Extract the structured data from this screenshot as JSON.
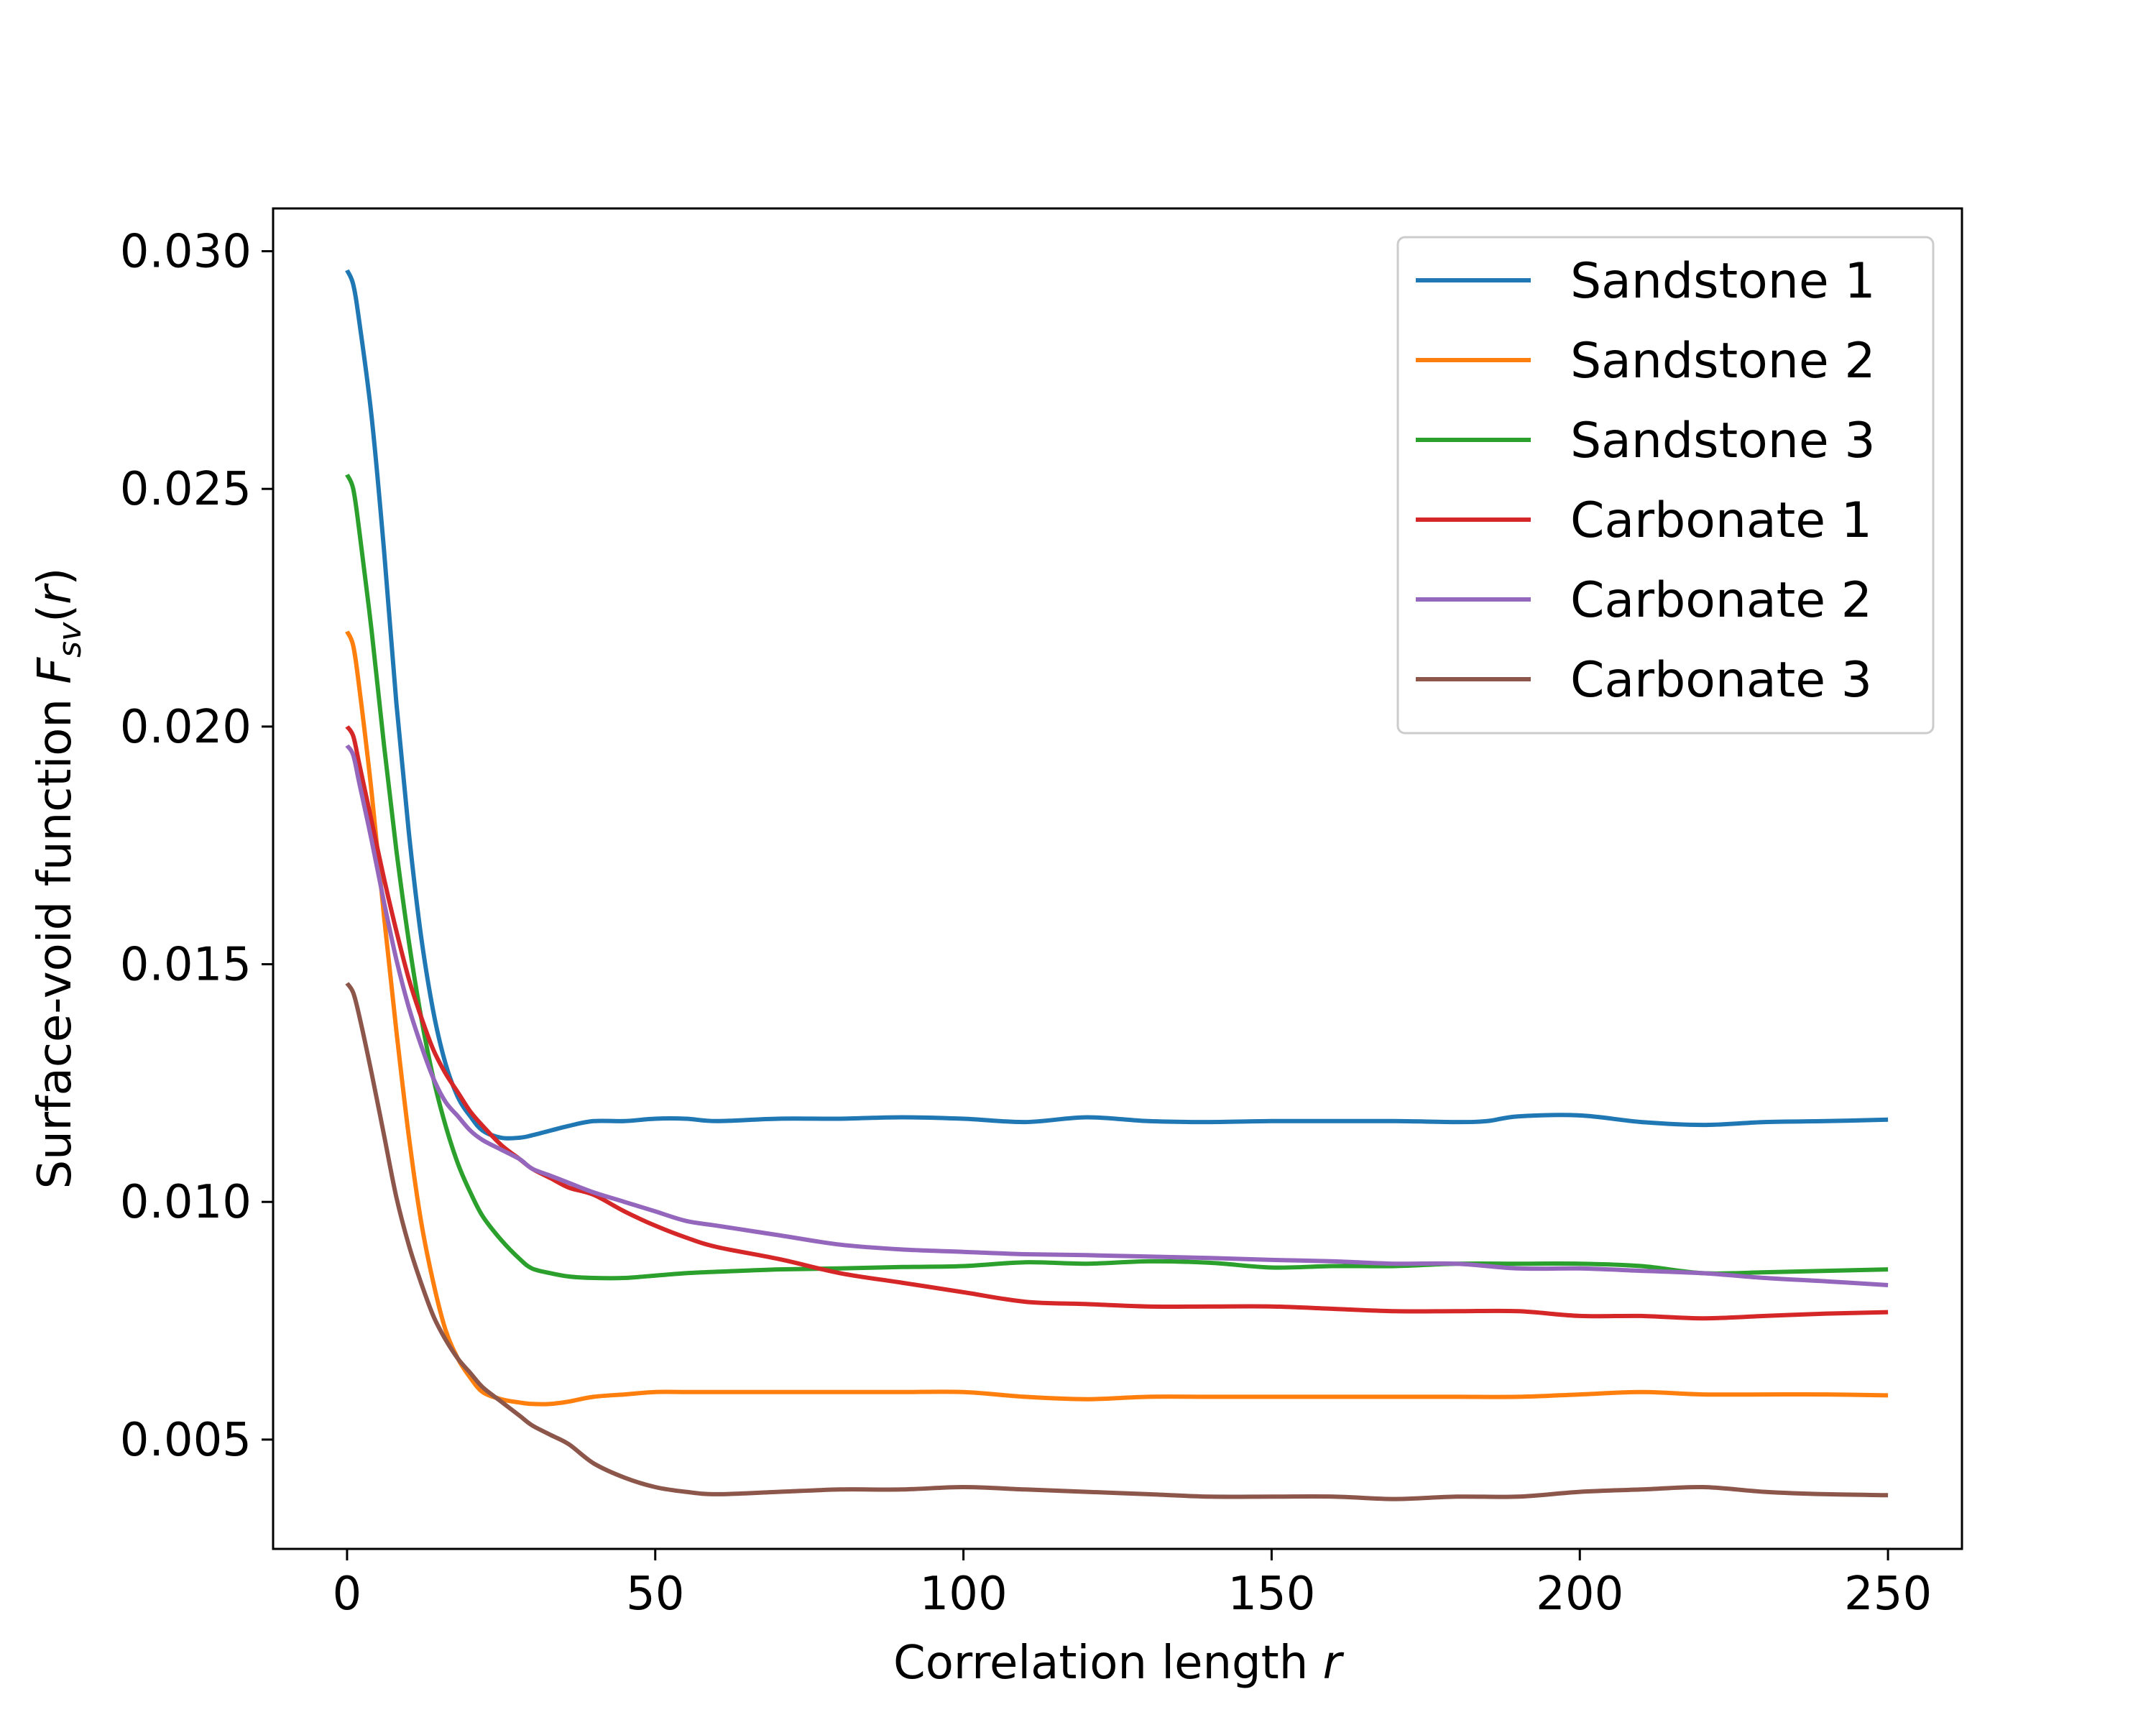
{
  "chart_data": {
    "type": "line",
    "xlabel": "Correlation length",
    "xlabel_var": "r",
    "ylabel": "Surface-void function",
    "ylabel_sym": "F",
    "ylabel_sub": "sv",
    "ylabel_arg": "r",
    "xlim": [
      -12,
      262
    ],
    "ylim": [
      0.0027,
      0.0309
    ],
    "xticks": [
      0,
      50,
      100,
      150,
      200,
      250
    ],
    "xtick_labels": [
      "0",
      "50",
      "100",
      "150",
      "200",
      "250"
    ],
    "yticks": [
      0.005,
      0.01,
      0.015,
      0.02,
      0.025,
      0.03
    ],
    "ytick_labels": [
      "0.005",
      "0.010",
      "0.015",
      "0.020",
      "0.025",
      "0.030"
    ],
    "grid": false,
    "legend_position": "top-right",
    "series": [
      {
        "name": "Sandstone 1",
        "color": "#1f77b4",
        "x": [
          0,
          1,
          2,
          4,
          6,
          8,
          10,
          12,
          14,
          16,
          18,
          20,
          22,
          25,
          28,
          30,
          33,
          36,
          40,
          45,
          50,
          55,
          60,
          70,
          80,
          90,
          100,
          110,
          120,
          130,
          140,
          150,
          160,
          170,
          180,
          185,
          190,
          200,
          210,
          220,
          230,
          240,
          250
        ],
        "y": [
          0.0296,
          0.0293,
          0.0285,
          0.0265,
          0.0237,
          0.0205,
          0.0178,
          0.0156,
          0.014,
          0.0129,
          0.0122,
          0.0118,
          0.0115,
          0.01135,
          0.01135,
          0.0114,
          0.0115,
          0.0116,
          0.0117,
          0.0117,
          0.01175,
          0.01175,
          0.0117,
          0.01175,
          0.01175,
          0.01178,
          0.01175,
          0.01168,
          0.01178,
          0.0117,
          0.01168,
          0.0117,
          0.0117,
          0.0117,
          0.01168,
          0.0117,
          0.0118,
          0.01182,
          0.01168,
          0.01162,
          0.01168,
          0.0117,
          0.01173
        ]
      },
      {
        "name": "Sandstone 2",
        "color": "#ff7f0e",
        "x": [
          0,
          1,
          2,
          4,
          6,
          8,
          10,
          12,
          14,
          16,
          18,
          20,
          22,
          25,
          28,
          30,
          33,
          36,
          40,
          45,
          50,
          55,
          60,
          70,
          80,
          90,
          100,
          110,
          120,
          130,
          140,
          150,
          160,
          170,
          180,
          190,
          200,
          210,
          220,
          230,
          240,
          250
        ],
        "y": [
          0.022,
          0.0217,
          0.0208,
          0.0186,
          0.016,
          0.0136,
          0.0114,
          0.0096,
          0.0083,
          0.0073,
          0.0067,
          0.0063,
          0.006,
          0.00585,
          0.00578,
          0.00575,
          0.00575,
          0.0058,
          0.0059,
          0.00595,
          0.006,
          0.006,
          0.006,
          0.006,
          0.006,
          0.006,
          0.006,
          0.0059,
          0.00585,
          0.0059,
          0.0059,
          0.0059,
          0.0059,
          0.0059,
          0.0059,
          0.0059,
          0.00595,
          0.006,
          0.00595,
          0.00595,
          0.00595,
          0.00593
        ]
      },
      {
        "name": "Sandstone 3",
        "color": "#2ca02c",
        "x": [
          0,
          1,
          2,
          4,
          6,
          8,
          10,
          12,
          14,
          16,
          18,
          20,
          22,
          25,
          28,
          30,
          33,
          36,
          40,
          45,
          50,
          55,
          60,
          70,
          80,
          90,
          100,
          110,
          120,
          130,
          140,
          150,
          160,
          170,
          180,
          190,
          200,
          210,
          220,
          230,
          240,
          250
        ],
        "y": [
          0.0253,
          0.025,
          0.0241,
          0.022,
          0.0196,
          0.0174,
          0.0155,
          0.0139,
          0.0126,
          0.0116,
          0.0108,
          0.0102,
          0.0097,
          0.0092,
          0.0088,
          0.0086,
          0.0085,
          0.00843,
          0.0084,
          0.0084,
          0.00845,
          0.0085,
          0.00853,
          0.00858,
          0.0086,
          0.00863,
          0.00865,
          0.00873,
          0.0087,
          0.00875,
          0.00872,
          0.00862,
          0.00865,
          0.00865,
          0.0087,
          0.0087,
          0.0087,
          0.00865,
          0.0085,
          0.00852,
          0.00855,
          0.00858
        ]
      },
      {
        "name": "Carbonate 1",
        "color": "#d62728",
        "x": [
          0,
          1,
          2,
          4,
          6,
          8,
          10,
          12,
          14,
          16,
          18,
          20,
          22,
          25,
          28,
          30,
          33,
          36,
          40,
          45,
          50,
          55,
          60,
          70,
          80,
          90,
          100,
          110,
          120,
          130,
          140,
          150,
          160,
          170,
          180,
          190,
          200,
          210,
          220,
          230,
          240,
          250
        ],
        "y": [
          0.02,
          0.0198,
          0.0192,
          0.018,
          0.0168,
          0.0157,
          0.0147,
          0.0139,
          0.0132,
          0.0127,
          0.0123,
          0.0119,
          0.0116,
          0.0112,
          0.0109,
          0.0107,
          0.0105,
          0.0103,
          0.01015,
          0.0098,
          0.0095,
          0.00925,
          0.00905,
          0.0088,
          0.0085,
          0.0083,
          0.0081,
          0.0079,
          0.00785,
          0.0078,
          0.0078,
          0.0078,
          0.00775,
          0.0077,
          0.0077,
          0.0077,
          0.0076,
          0.0076,
          0.00755,
          0.0076,
          0.00765,
          0.00768
        ]
      },
      {
        "name": "Carbonate 2",
        "color": "#9467bd",
        "x": [
          0,
          1,
          2,
          4,
          6,
          8,
          10,
          12,
          14,
          16,
          18,
          20,
          22,
          25,
          28,
          30,
          33,
          36,
          40,
          45,
          50,
          55,
          60,
          70,
          80,
          90,
          100,
          110,
          120,
          130,
          140,
          150,
          160,
          170,
          180,
          190,
          200,
          210,
          220,
          230,
          240,
          250
        ],
        "y": [
          0.0196,
          0.0194,
          0.0188,
          0.0176,
          0.0163,
          0.0151,
          0.0141,
          0.0133,
          0.0126,
          0.0121,
          0.0118,
          0.0115,
          0.0113,
          0.0111,
          0.0109,
          0.0107,
          0.01055,
          0.0104,
          0.0102,
          0.01,
          0.0098,
          0.0096,
          0.0095,
          0.0093,
          0.0091,
          0.009,
          0.00895,
          0.0089,
          0.00888,
          0.00885,
          0.00882,
          0.00878,
          0.00875,
          0.0087,
          0.0087,
          0.0086,
          0.0086,
          0.00855,
          0.0085,
          0.0084,
          0.00833,
          0.00825
        ]
      },
      {
        "name": "Carbonate 3",
        "color": "#8c564b",
        "x": [
          0,
          1,
          2,
          4,
          6,
          8,
          10,
          12,
          14,
          16,
          18,
          20,
          22,
          25,
          28,
          30,
          33,
          36,
          40,
          45,
          50,
          55,
          60,
          70,
          80,
          90,
          100,
          110,
          120,
          130,
          140,
          150,
          160,
          170,
          180,
          190,
          200,
          210,
          220,
          230,
          240,
          250
        ],
        "y": [
          0.0146,
          0.0144,
          0.0139,
          0.0127,
          0.0114,
          0.0101,
          0.0091,
          0.0083,
          0.0076,
          0.0071,
          0.0067,
          0.0064,
          0.0061,
          0.0058,
          0.0055,
          0.0053,
          0.0051,
          0.0049,
          0.0045,
          0.0042,
          0.004,
          0.0039,
          0.00385,
          0.0039,
          0.00395,
          0.00395,
          0.004,
          0.00395,
          0.0039,
          0.00385,
          0.0038,
          0.0038,
          0.0038,
          0.00375,
          0.0038,
          0.0038,
          0.0039,
          0.00395,
          0.004,
          0.0039,
          0.00385,
          0.00383
        ]
      }
    ]
  }
}
